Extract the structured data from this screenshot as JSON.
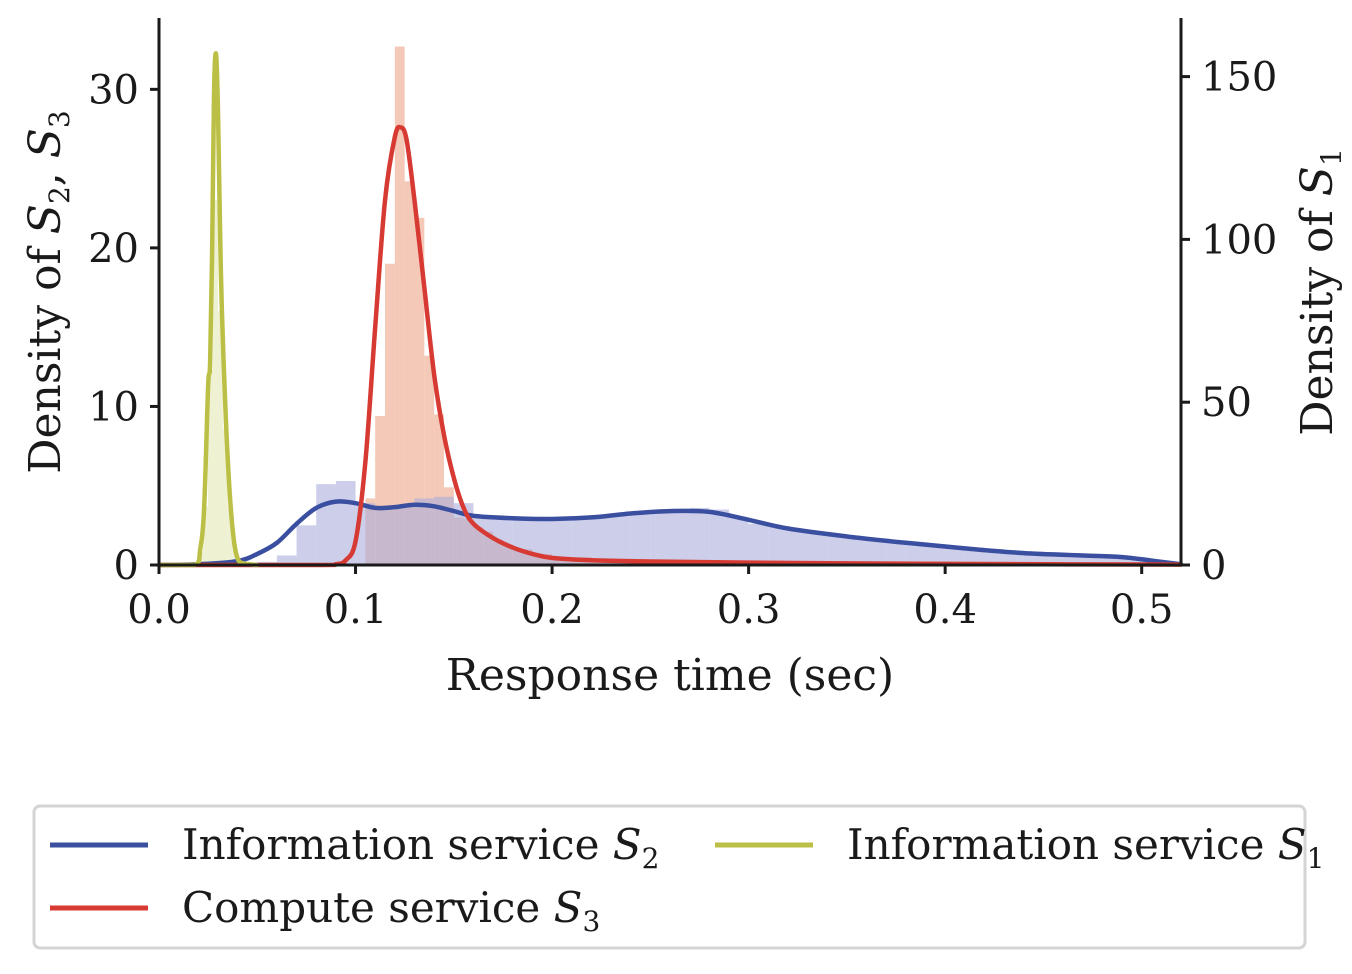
{
  "chart_data": {
    "type": "area",
    "xlabel": "Response time (sec)",
    "ylabel_left": {
      "text": "Density of ",
      "vars": [
        [
          "S",
          "2"
        ],
        [
          "S",
          "3"
        ]
      ],
      "sep": ", "
    },
    "ylabel_right": {
      "text": "Density of ",
      "vars": [
        [
          "S",
          "1"
        ]
      ],
      "sep": ""
    },
    "xlim": [
      0.0,
      0.52
    ],
    "ylim_left": [
      0,
      34.5
    ],
    "ylim_right": [
      0,
      168
    ],
    "x_ticks": [
      "0.0",
      "0.1",
      "0.2",
      "0.3",
      "0.4",
      "0.5"
    ],
    "y_ticks_left": [
      "0",
      "10",
      "20",
      "30"
    ],
    "y_ticks_right": [
      "0",
      "50",
      "100",
      "150"
    ],
    "grid": false,
    "legend_position": "bottom",
    "series": [
      {
        "name": "Information service S2",
        "name_text": "Information service ",
        "name_var": [
          "S",
          "2"
        ],
        "axis": "left",
        "color": "#3a4fa0",
        "fill": "#aaaedc",
        "x": [
          0.0,
          0.02,
          0.04,
          0.05,
          0.06,
          0.07,
          0.08,
          0.09,
          0.1,
          0.11,
          0.12,
          0.13,
          0.14,
          0.15,
          0.16,
          0.18,
          0.2,
          0.22,
          0.24,
          0.26,
          0.28,
          0.3,
          0.32,
          0.35,
          0.38,
          0.41,
          0.44,
          0.47,
          0.49,
          0.51,
          0.52
        ],
        "y": [
          0.0,
          0.05,
          0.25,
          0.7,
          1.4,
          2.6,
          3.6,
          4.0,
          3.9,
          3.6,
          3.65,
          3.8,
          3.7,
          3.4,
          3.1,
          2.95,
          2.9,
          3.0,
          3.25,
          3.4,
          3.35,
          2.85,
          2.3,
          1.8,
          1.4,
          1.05,
          0.75,
          0.6,
          0.5,
          0.2,
          0.05
        ],
        "hist_edges": [
          0.0,
          0.01,
          0.02,
          0.03,
          0.04,
          0.05,
          0.06,
          0.07,
          0.08,
          0.09,
          0.1,
          0.11,
          0.12,
          0.13,
          0.14,
          0.15,
          0.16,
          0.17,
          0.18,
          0.19,
          0.2,
          0.21,
          0.22,
          0.23,
          0.24,
          0.25,
          0.26,
          0.27,
          0.28,
          0.29,
          0.3,
          0.31,
          0.32,
          0.33,
          0.34,
          0.35,
          0.36,
          0.37,
          0.38,
          0.39,
          0.4,
          0.41,
          0.42,
          0.43,
          0.44,
          0.45,
          0.46,
          0.47,
          0.48,
          0.49,
          0.5,
          0.51,
          0.52
        ],
        "hist_values": [
          0,
          0,
          0,
          0,
          0.1,
          0.2,
          0.6,
          2.5,
          5.1,
          5.3,
          3.9,
          3.5,
          3.7,
          4.2,
          4.3,
          3.9,
          3.1,
          3.0,
          2.9,
          2.9,
          2.8,
          2.9,
          3.0,
          3.1,
          3.3,
          3.4,
          3.5,
          3.6,
          3.5,
          3.0,
          2.6,
          2.4,
          2.2,
          2.0,
          1.9,
          1.7,
          1.6,
          1.5,
          1.4,
          1.3,
          1.2,
          1.1,
          1.0,
          0.9,
          0.85,
          0.8,
          0.7,
          0.65,
          0.6,
          0.5,
          0.3,
          0.1
        ]
      },
      {
        "name": "Compute service S3",
        "name_text": "Compute service ",
        "name_var": [
          "S",
          "3"
        ],
        "axis": "left",
        "color": "#d63a33",
        "fill": "#f2b79f",
        "x": [
          0.0,
          0.08,
          0.09,
          0.095,
          0.1,
          0.105,
          0.11,
          0.115,
          0.12,
          0.123,
          0.126,
          0.13,
          0.135,
          0.14,
          0.145,
          0.15,
          0.155,
          0.16,
          0.17,
          0.18,
          0.19,
          0.2,
          0.22,
          0.25,
          0.3,
          0.35,
          0.4,
          0.45,
          0.5,
          0.52
        ],
        "y": [
          0.0,
          0.0,
          0.05,
          0.3,
          1.5,
          6.5,
          15.0,
          23.0,
          27.0,
          27.6,
          26.8,
          23.0,
          17.5,
          12.0,
          8.2,
          5.5,
          3.6,
          2.6,
          1.7,
          1.1,
          0.7,
          0.45,
          0.3,
          0.22,
          0.15,
          0.1,
          0.07,
          0.05,
          0.03,
          0.02
        ],
        "hist_edges": [
          0.105,
          0.11,
          0.115,
          0.12,
          0.125,
          0.13,
          0.135,
          0.14,
          0.145,
          0.15,
          0.155,
          0.16,
          0.165,
          0.17,
          0.175,
          0.18,
          0.19,
          0.2,
          0.22,
          0.25,
          0.3,
          0.35,
          0.4,
          0.45,
          0.5
        ],
        "hist_values": [
          4.2,
          9.4,
          19.0,
          32.7,
          24.2,
          21.9,
          13.2,
          9.5,
          4.9,
          3.0,
          2.9,
          2.4,
          2.1,
          1.6,
          1.3,
          1.0,
          0.7,
          0.5,
          0.3,
          0.2,
          0.1,
          0.05,
          0.03,
          0.02
        ]
      },
      {
        "name": "Information service S1",
        "name_text": "Information service ",
        "name_var": [
          "S",
          "1"
        ],
        "axis": "right",
        "color": "#bcbf45",
        "fill": "#e9ecc4",
        "x": [
          0.0,
          0.018,
          0.021,
          0.023,
          0.025,
          0.026,
          0.027,
          0.028,
          0.029,
          0.03,
          0.031,
          0.032,
          0.034,
          0.036,
          0.038,
          0.04,
          0.043,
          0.05
        ],
        "y": [
          0.0,
          0.0,
          5.0,
          18.0,
          55.0,
          62.0,
          95.0,
          145.0,
          157.0,
          140.0,
          105.0,
          78.0,
          45.0,
          22.0,
          8.0,
          2.0,
          0.5,
          0.0
        ],
        "hist_edges": [
          0.02,
          0.0225,
          0.025,
          0.0275,
          0.03,
          0.0325,
          0.035,
          0.0375,
          0.04,
          0.0425
        ],
        "hist_values": [
          4.0,
          18.0,
          60.0,
          112.0,
          78.0,
          42.0,
          18.0,
          5.0,
          1.0
        ]
      }
    ]
  }
}
